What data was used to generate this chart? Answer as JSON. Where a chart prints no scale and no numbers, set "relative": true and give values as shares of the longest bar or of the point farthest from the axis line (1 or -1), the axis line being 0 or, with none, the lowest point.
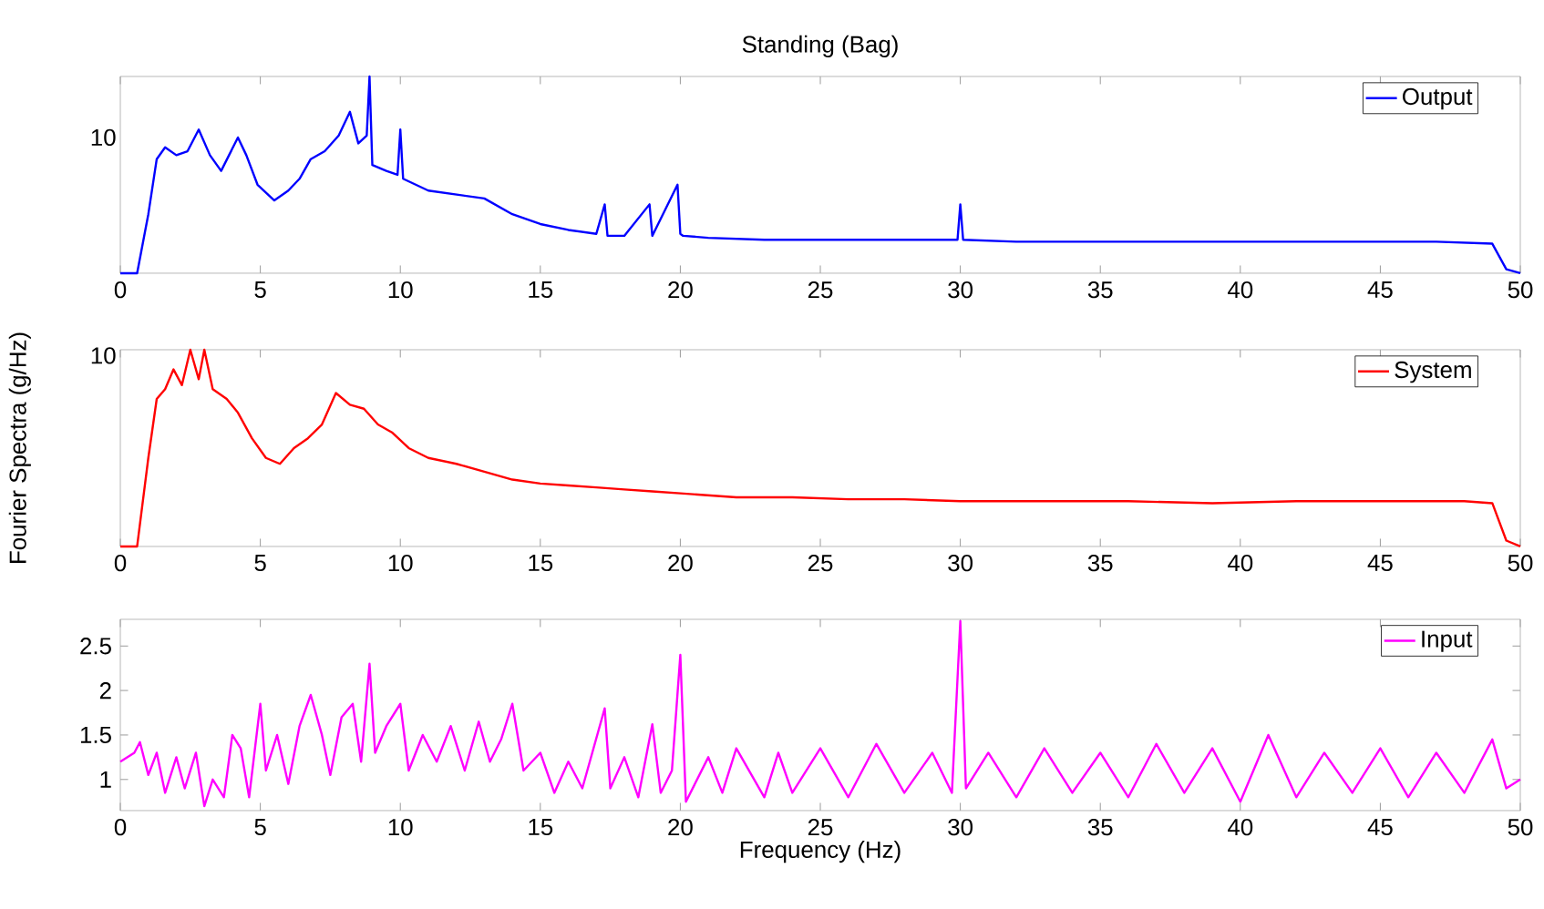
{
  "chart_data": [
    {
      "type": "line",
      "title": "Standing (Bag)",
      "relative": true,
      "xlim": [
        0,
        50
      ],
      "xticks": [
        0,
        5,
        10,
        15,
        20,
        25,
        30,
        35,
        40,
        45,
        50
      ],
      "legend": "top right",
      "marker": "none",
      "line_style": "solid",
      "annotations": [
        "10"
      ],
      "x": [
        0,
        0.6,
        1.0,
        1.3,
        1.6,
        2.0,
        2.4,
        2.8,
        3.2,
        3.6,
        4.2,
        4.5,
        4.9,
        5.5,
        6.0,
        6.4,
        6.8,
        7.3,
        7.8,
        8.2,
        8.5,
        8.8,
        8.9,
        9.0,
        9.5,
        9.9,
        10.0,
        10.1,
        11,
        12,
        13,
        14,
        15,
        16,
        17,
        17.3,
        17.4,
        18,
        18.9,
        19,
        19.9,
        20.0,
        20.1,
        21,
        23,
        25,
        27,
        29.9,
        30,
        30.1,
        32,
        35,
        38,
        41,
        44,
        47,
        49,
        49.5,
        50
      ],
      "series": [
        {
          "name": "Output",
          "color": "#0000ff",
          "values": [
            0,
            0,
            0.3,
            0.58,
            0.64,
            0.6,
            0.62,
            0.73,
            0.6,
            0.52,
            0.69,
            0.6,
            0.45,
            0.37,
            0.42,
            0.48,
            0.58,
            0.62,
            0.7,
            0.82,
            0.66,
            0.7,
            1.0,
            0.55,
            0.52,
            0.5,
            0.73,
            0.48,
            0.42,
            0.4,
            0.38,
            0.3,
            0.25,
            0.22,
            0.2,
            0.35,
            0.19,
            0.19,
            0.35,
            0.19,
            0.45,
            0.2,
            0.19,
            0.18,
            0.17,
            0.17,
            0.17,
            0.17,
            0.35,
            0.17,
            0.16,
            0.16,
            0.16,
            0.16,
            0.16,
            0.16,
            0.15,
            0.02,
            0
          ]
        }
      ]
    },
    {
      "type": "line",
      "ylabel": "Fourier Spectra (g/Hz)",
      "relative": true,
      "xlim": [
        0,
        50
      ],
      "xticks": [
        0,
        5,
        10,
        15,
        20,
        25,
        30,
        35,
        40,
        45,
        50
      ],
      "legend": "top right",
      "marker": "none",
      "line_style": "solid",
      "annotations": [
        "10"
      ],
      "x": [
        0,
        0.6,
        1.0,
        1.3,
        1.6,
        1.9,
        2.2,
        2.5,
        2.8,
        3.0,
        3.3,
        3.8,
        4.2,
        4.7,
        5.2,
        5.7,
        6.2,
        6.7,
        7.2,
        7.7,
        8.2,
        8.7,
        9.2,
        9.7,
        10.3,
        11,
        12,
        13,
        14,
        15,
        16,
        17,
        18,
        19,
        20,
        22,
        24,
        26,
        28,
        30,
        33,
        36,
        39,
        42,
        45,
        48,
        49,
        49.5,
        50
      ],
      "series": [
        {
          "name": "System",
          "color": "#ff0000",
          "values": [
            0,
            0,
            0.45,
            0.75,
            0.8,
            0.9,
            0.82,
            1.0,
            0.85,
            1.0,
            0.8,
            0.75,
            0.68,
            0.55,
            0.45,
            0.42,
            0.5,
            0.55,
            0.62,
            0.78,
            0.72,
            0.7,
            0.62,
            0.58,
            0.5,
            0.45,
            0.42,
            0.38,
            0.34,
            0.32,
            0.31,
            0.3,
            0.29,
            0.28,
            0.27,
            0.25,
            0.25,
            0.24,
            0.24,
            0.23,
            0.23,
            0.23,
            0.22,
            0.23,
            0.23,
            0.23,
            0.22,
            0.03,
            0
          ]
        }
      ]
    },
    {
      "type": "line",
      "xlabel": "Frequency (Hz)",
      "xlim": [
        0,
        50
      ],
      "xticks": [
        0,
        5,
        10,
        15,
        20,
        25,
        30,
        35,
        40,
        45,
        50
      ],
      "ylim": [
        0.65,
        2.8
      ],
      "yticks": [
        1,
        1.5,
        2,
        2.5
      ],
      "legend": "top right",
      "marker": "none",
      "line_style": "solid",
      "x": [
        0,
        0.5,
        0.7,
        1,
        1.3,
        1.6,
        2,
        2.3,
        2.7,
        3,
        3.3,
        3.7,
        4,
        4.3,
        4.6,
        5,
        5.2,
        5.6,
        6,
        6.4,
        6.8,
        7.2,
        7.5,
        7.9,
        8.3,
        8.6,
        8.9,
        9.1,
        9.5,
        10,
        10.3,
        10.8,
        11.3,
        11.8,
        12.3,
        12.8,
        13.2,
        13.6,
        14,
        14.4,
        15,
        15.5,
        16,
        16.5,
        17.3,
        17.5,
        18,
        18.5,
        19,
        19.3,
        19.7,
        20,
        20.2,
        21,
        21.5,
        22,
        23,
        23.5,
        24,
        25,
        26,
        27,
        28,
        29,
        29.7,
        30,
        30.2,
        31,
        32,
        33,
        34,
        35,
        36,
        37,
        38,
        39,
        40,
        41,
        42,
        43,
        44,
        45,
        46,
        47,
        48,
        49,
        49.5,
        50
      ],
      "series": [
        {
          "name": "Input",
          "color": "#ff00ff",
          "values": [
            1.2,
            1.3,
            1.42,
            1.05,
            1.3,
            0.85,
            1.25,
            0.9,
            1.3,
            0.7,
            1.0,
            0.8,
            1.5,
            1.35,
            0.8,
            1.85,
            1.1,
            1.5,
            0.95,
            1.6,
            1.95,
            1.5,
            1.05,
            1.7,
            1.85,
            1.2,
            2.3,
            1.3,
            1.6,
            1.85,
            1.1,
            1.5,
            1.2,
            1.6,
            1.1,
            1.65,
            1.2,
            1.45,
            1.85,
            1.1,
            1.3,
            0.85,
            1.2,
            0.9,
            1.8,
            0.9,
            1.25,
            0.8,
            1.62,
            0.85,
            1.1,
            2.4,
            0.75,
            1.25,
            0.85,
            1.35,
            0.8,
            1.3,
            0.85,
            1.35,
            0.8,
            1.4,
            0.85,
            1.3,
            0.85,
            2.78,
            0.9,
            1.3,
            0.8,
            1.35,
            0.85,
            1.3,
            0.8,
            1.4,
            0.85,
            1.35,
            0.75,
            1.5,
            0.8,
            1.3,
            0.85,
            1.35,
            0.8,
            1.3,
            0.85,
            1.45,
            0.9,
            1.0
          ]
        }
      ]
    }
  ]
}
